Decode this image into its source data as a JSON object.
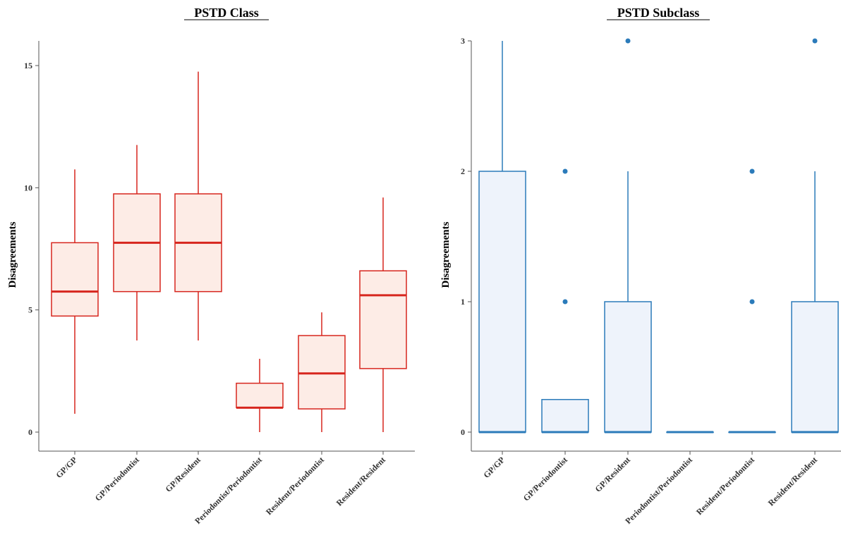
{
  "chart_data": [
    {
      "type": "boxplot",
      "title": "PSTD Class",
      "ylabel": "Disagreements",
      "ylim": [
        0,
        16
      ],
      "yticks": [
        0,
        5,
        10,
        15
      ],
      "color": "#d7261e",
      "fill": "#fdece6",
      "categories": [
        "GP/GP",
        "GP/Periodontist",
        "GP/Resident",
        "Periodontist/Periodontist",
        "Resident/Periodontist",
        "Resident/Resident"
      ],
      "boxes": [
        {
          "whisker_low": 0.75,
          "q1": 4.75,
          "median": 5.75,
          "q3": 7.75,
          "whisker_high": 10.75,
          "outliers": []
        },
        {
          "whisker_low": 3.75,
          "q1": 5.75,
          "median": 7.75,
          "q3": 9.75,
          "whisker_high": 11.75,
          "outliers": []
        },
        {
          "whisker_low": 3.75,
          "q1": 5.75,
          "median": 7.75,
          "q3": 9.75,
          "whisker_high": 14.75,
          "outliers": []
        },
        {
          "whisker_low": 0,
          "q1": 1,
          "median": 1,
          "q3": 2,
          "whisker_high": 3,
          "outliers": []
        },
        {
          "whisker_low": 0,
          "q1": 0.95,
          "median": 2.4,
          "q3": 3.95,
          "whisker_high": 4.9,
          "outliers": []
        },
        {
          "whisker_low": 0,
          "q1": 2.6,
          "median": 5.6,
          "q3": 6.6,
          "whisker_high": 9.6,
          "outliers": []
        }
      ]
    },
    {
      "type": "boxplot",
      "title": "PSTD Subclass",
      "ylabel": "Disagreements",
      "ylim": [
        0,
        3
      ],
      "yticks": [
        0,
        1,
        2,
        3
      ],
      "color": "#2b7bba",
      "fill": "#eef3fb",
      "categories": [
        "GP/GP",
        "GP/Periodontist",
        "GP/Resident",
        "Periodontist/Periodontist",
        "Resident/Periodontist",
        "Resident/Resident"
      ],
      "boxes": [
        {
          "whisker_low": 0,
          "q1": 0,
          "median": 0,
          "q3": 2,
          "whisker_high": 3,
          "outliers": []
        },
        {
          "whisker_low": 0,
          "q1": 0,
          "median": 0,
          "q3": 0.25,
          "whisker_high": 0.25,
          "outliers": [
            1,
            2
          ]
        },
        {
          "whisker_low": 0,
          "q1": 0,
          "median": 0,
          "q3": 1,
          "whisker_high": 2,
          "outliers": [
            3
          ]
        },
        {
          "whisker_low": 0,
          "q1": 0,
          "median": 0,
          "q3": 0,
          "whisker_high": 0,
          "outliers": []
        },
        {
          "whisker_low": 0,
          "q1": 0,
          "median": 0,
          "q3": 0,
          "whisker_high": 0,
          "outliers": [
            1,
            2
          ]
        },
        {
          "whisker_low": 0,
          "q1": 0,
          "median": 0,
          "q3": 1,
          "whisker_high": 2,
          "outliers": [
            3
          ]
        }
      ]
    }
  ]
}
